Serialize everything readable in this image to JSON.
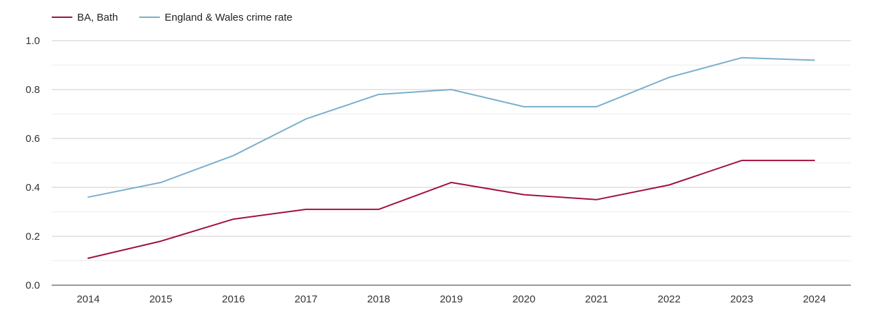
{
  "chart_data": {
    "type": "line",
    "title": "",
    "xlabel": "",
    "ylabel": "",
    "x": [
      2014,
      2015,
      2016,
      2017,
      2018,
      2019,
      2020,
      2021,
      2022,
      2023,
      2024
    ],
    "x_tick_labels": [
      "2014",
      "2015",
      "2016",
      "2017",
      "2018",
      "2019",
      "2020",
      "2021",
      "2022",
      "2023",
      "2024"
    ],
    "ylim": [
      0,
      1.0
    ],
    "y_ticks": [
      0.0,
      0.2,
      0.4,
      0.6,
      0.8,
      1.0
    ],
    "y_tick_labels": [
      "0.0",
      "0.2",
      "0.4",
      "0.6",
      "0.8",
      "1.0"
    ],
    "grid": true,
    "legend_position": "top-left",
    "series": [
      {
        "name": "BA, Bath",
        "color": "#a0103a",
        "values": [
          0.11,
          0.18,
          0.27,
          0.31,
          0.31,
          0.42,
          0.37,
          0.35,
          0.41,
          0.51,
          0.51
        ]
      },
      {
        "name": "England & Wales crime rate",
        "color": "#7aaecc",
        "values": [
          0.36,
          0.42,
          0.53,
          0.68,
          0.78,
          0.8,
          0.73,
          0.73,
          0.85,
          0.93,
          0.92
        ]
      }
    ]
  }
}
